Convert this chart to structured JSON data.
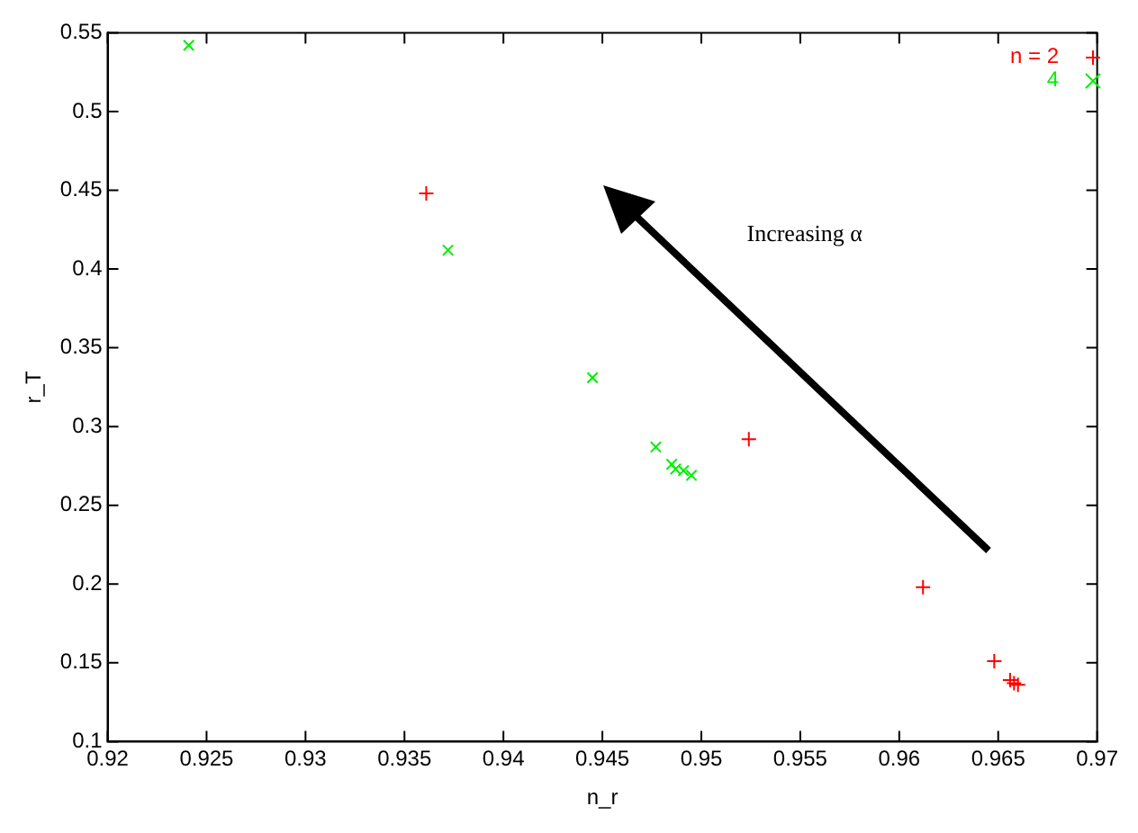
{
  "chart_data": {
    "type": "scatter",
    "xlabel": "n_r",
    "ylabel": "r_T",
    "xlim": [
      0.92,
      0.97
    ],
    "ylim": [
      0.1,
      0.55
    ],
    "xticks": [
      0.92,
      0.925,
      0.93,
      0.935,
      0.94,
      0.945,
      0.95,
      0.955,
      0.96,
      0.965,
      0.97
    ],
    "yticks": [
      0.1,
      0.15,
      0.2,
      0.25,
      0.3,
      0.35,
      0.4,
      0.45,
      0.5,
      0.55
    ],
    "grid": false,
    "legend": "top right",
    "annotations": [
      "Increasing α"
    ],
    "series": [
      {
        "name": "n = 2",
        "color": "#ff0000",
        "marker": "cross",
        "x": [
          0.9361,
          0.9524,
          0.9612,
          0.9648,
          0.9656,
          0.9658,
          0.966
        ],
        "values": [
          0.448,
          0.292,
          0.198,
          0.151,
          0.139,
          0.137,
          0.136
        ]
      },
      {
        "name": "4",
        "color": "#00ee00",
        "marker": "x",
        "x": [
          0.9241,
          0.9372,
          0.9445,
          0.9477,
          0.9485,
          0.9487,
          0.9491,
          0.9495
        ],
        "values": [
          0.542,
          0.412,
          0.331,
          0.287,
          0.276,
          0.273,
          0.272,
          0.269
        ]
      }
    ]
  }
}
